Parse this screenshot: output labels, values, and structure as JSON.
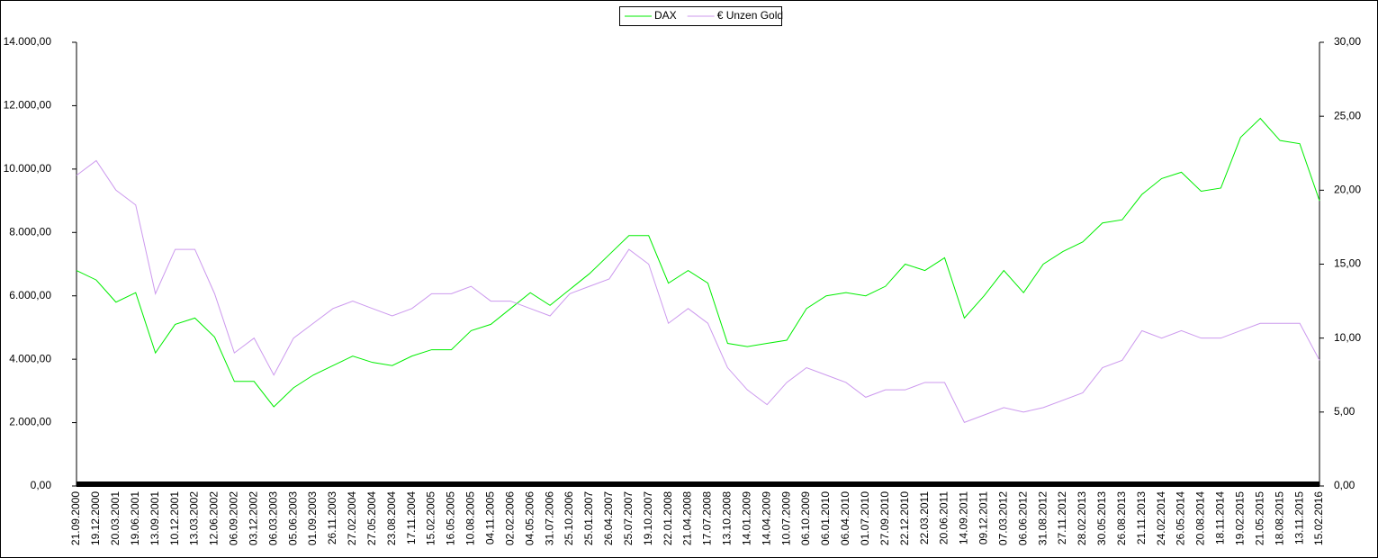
{
  "chart_data": {
    "type": "line",
    "categories": [
      "21.09.2000",
      "19.12.2000",
      "20.03.2001",
      "19.06.2001",
      "13.09.2001",
      "10.12.2001",
      "13.03.2002",
      "12.06.2002",
      "06.09.2002",
      "03.12.2002",
      "06.03.2003",
      "05.06.2003",
      "01.09.2003",
      "26.11.2003",
      "27.02.2004",
      "27.05.2004",
      "23.08.2004",
      "17.11.2004",
      "15.02.2005",
      "16.05.2005",
      "10.08.2005",
      "04.11.2005",
      "02.02.2006",
      "04.05.2006",
      "31.07.2006",
      "25.10.2006",
      "25.01.2007",
      "26.04.2007",
      "25.07.2007",
      "19.10.2007",
      "22.01.2008",
      "21.04.2008",
      "17.07.2008",
      "13.10.2008",
      "14.01.2009",
      "14.04.2009",
      "10.07.2009",
      "06.10.2009",
      "06.01.2010",
      "06.04.2010",
      "01.07.2010",
      "27.09.2010",
      "22.12.2010",
      "22.03.2011",
      "20.06.2011",
      "14.09.2011",
      "09.12.2011",
      "07.03.2012",
      "06.06.2012",
      "31.08.2012",
      "27.11.2012",
      "28.02.2013",
      "30.05.2013",
      "26.08.2013",
      "21.11.2013",
      "24.02.2014",
      "26.05.2014",
      "20.08.2014",
      "18.11.2014",
      "19.02.2015",
      "21.05.2015",
      "18.08.2015",
      "13.11.2015",
      "15.02.2016"
    ],
    "series": [
      {
        "name": "DAX",
        "color": "#00ee00",
        "values": [
          6800,
          6500,
          5800,
          6100,
          4200,
          5100,
          5300,
          4700,
          3300,
          3300,
          2500,
          3100,
          3500,
          3800,
          4100,
          3900,
          3800,
          4100,
          4300,
          4300,
          4900,
          5100,
          5600,
          6100,
          5700,
          6200,
          6700,
          7300,
          7900,
          7900,
          6400,
          6800,
          6400,
          4500,
          4400,
          4500,
          4600,
          5600,
          6000,
          6100,
          6000,
          6300,
          7000,
          6800,
          7200,
          5300,
          6000,
          6800,
          6100,
          7000,
          7400,
          7700,
          8300,
          8400,
          9200,
          9700,
          9900,
          9300,
          9400,
          11000,
          11600,
          10900,
          10800,
          9000
        ]
      },
      {
        "name": "€ Unzen Gold",
        "color": "#cc99ee",
        "axis": "y2",
        "values": [
          21,
          22,
          20,
          19,
          13,
          16,
          16,
          13,
          9,
          10,
          7.5,
          10,
          11,
          12,
          12.5,
          12,
          11.5,
          12,
          13,
          13,
          13.5,
          12.5,
          12.5,
          12,
          11.5,
          13,
          13.5,
          14,
          16,
          15,
          11,
          12,
          11,
          8,
          6.5,
          5.5,
          7,
          8,
          7.5,
          7,
          6,
          6.5,
          6.5,
          7,
          7,
          4.3,
          4.8,
          5.3,
          5,
          5.3,
          5.8,
          6.3,
          8,
          8.5,
          10.5,
          10,
          10.5,
          10,
          10,
          10.5,
          11,
          11,
          11,
          8.5
        ]
      }
    ],
    "ylim": [
      0,
      14000
    ],
    "yticks": [
      {
        "value": 0,
        "label": "0,00"
      },
      {
        "value": 2000,
        "label": "2.000,00"
      },
      {
        "value": 4000,
        "label": "4.000,00"
      },
      {
        "value": 6000,
        "label": "6.000,00"
      },
      {
        "value": 8000,
        "label": "8.000,00"
      },
      {
        "value": 10000,
        "label": "10.000,00"
      },
      {
        "value": 12000,
        "label": "12.000,00"
      },
      {
        "value": 14000,
        "label": "14.000,00"
      }
    ],
    "y2lim": [
      0,
      30
    ],
    "y2ticks": [
      {
        "value": 0,
        "label": "0,00"
      },
      {
        "value": 5,
        "label": "5,00"
      },
      {
        "value": 10,
        "label": "10,00"
      },
      {
        "value": 15,
        "label": "15,00"
      },
      {
        "value": 20,
        "label": "20,00"
      },
      {
        "value": 25,
        "label": "25,00"
      },
      {
        "value": 30,
        "label": "30,00"
      }
    ],
    "legend": "top"
  }
}
